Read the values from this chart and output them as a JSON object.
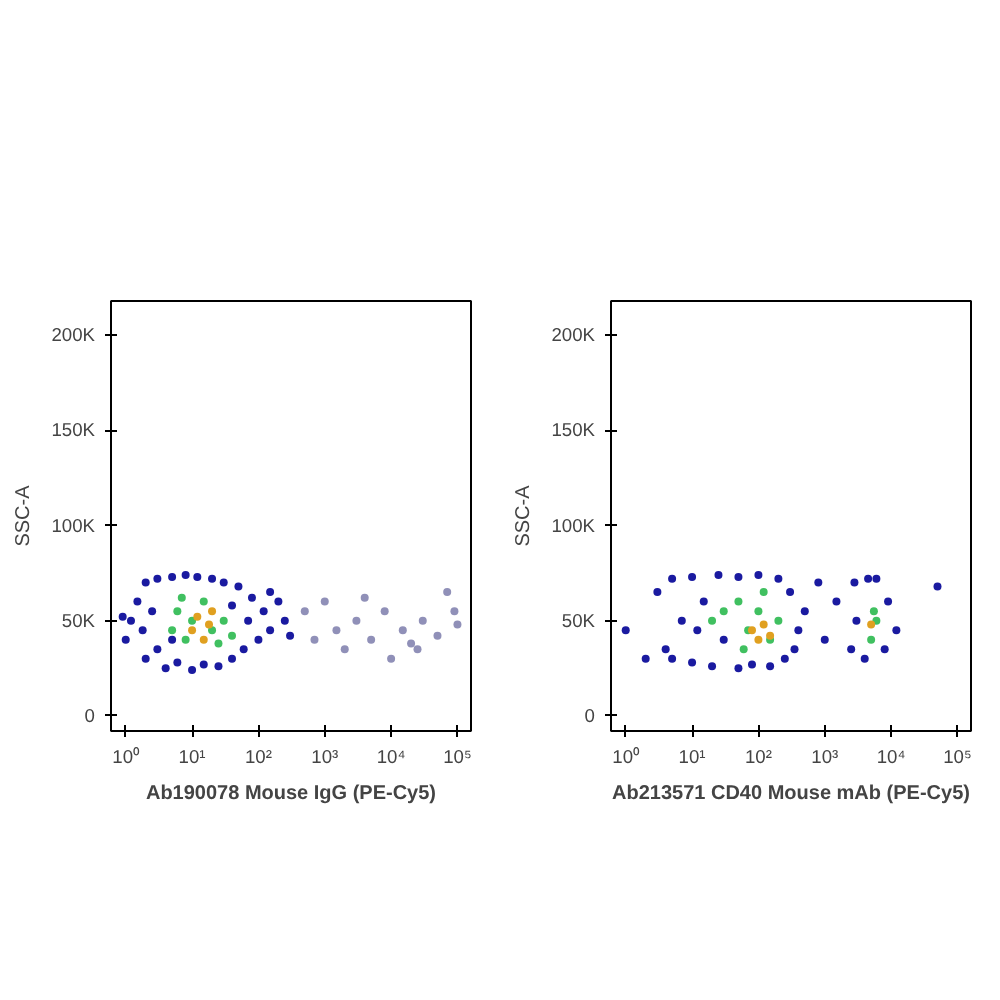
{
  "chart_data": [
    {
      "type": "scatter",
      "xlabel": "Ab190078 Mouse IgG (PE-Cy5)",
      "ylabel": "SSC-A",
      "log": "x",
      "grid": false,
      "marker": "circle",
      "xlim": [
        0.6,
        160000
      ],
      "ylim": [
        -8000,
        218000
      ],
      "xticks": [
        {
          "value": 1,
          "label": "10⁰"
        },
        {
          "value": 10,
          "label": "10¹"
        },
        {
          "value": 100,
          "label": "10²"
        },
        {
          "value": 1000,
          "label": "10³"
        },
        {
          "value": 10000,
          "label": "10⁴"
        },
        {
          "value": 100000,
          "label": "10⁵"
        }
      ],
      "yticks": [
        0,
        {
          "value": 50000,
          "label": "50K"
        },
        {
          "value": 100000,
          "label": "100K"
        },
        {
          "value": 150000,
          "label": "150K"
        },
        {
          "value": 200000,
          "label": "200K"
        }
      ],
      "series": [
        {
          "color": "#9090b8",
          "x": [
            500,
            700,
            1000,
            1500,
            2000,
            3000,
            5000,
            8000,
            10000,
            15000,
            20000,
            30000,
            50000,
            70000,
            90000,
            100000,
            4000,
            25000
          ],
          "values": [
            55000,
            40000,
            60000,
            45000,
            35000,
            50000,
            40000,
            55000,
            30000,
            45000,
            38000,
            50000,
            42000,
            65000,
            55000,
            48000,
            62000,
            35000
          ]
        },
        {
          "color": "#1a1aa0",
          "x": [
            1,
            1.5,
            2,
            2,
            3,
            3,
            4,
            5,
            6,
            8,
            10,
            12,
            15,
            20,
            25,
            30,
            40,
            50,
            60,
            80,
            100,
            120,
            150,
            200,
            250,
            300,
            1.2,
            1.8,
            2.5,
            70,
            40,
            5,
            150,
            0.9
          ],
          "values": [
            40000,
            60000,
            70000,
            30000,
            72000,
            35000,
            25000,
            73000,
            28000,
            74000,
            24000,
            73000,
            27000,
            72000,
            26000,
            70000,
            30000,
            68000,
            35000,
            62000,
            40000,
            55000,
            45000,
            60000,
            50000,
            42000,
            50000,
            45000,
            55000,
            50000,
            58000,
            40000,
            65000,
            52000
          ]
        },
        {
          "color": "#40c060",
          "x": [
            5,
            6,
            8,
            10,
            15,
            20,
            30,
            40,
            7,
            25
          ],
          "values": [
            45000,
            55000,
            40000,
            50000,
            60000,
            45000,
            50000,
            42000,
            62000,
            38000
          ]
        },
        {
          "color": "#e0a020",
          "x": [
            10,
            12,
            15,
            18,
            20
          ],
          "values": [
            45000,
            52000,
            40000,
            48000,
            55000
          ]
        }
      ]
    },
    {
      "type": "scatter",
      "xlabel": "Ab213571 CD40 Mouse mAb (PE-Cy5)",
      "ylabel": "SSC-A",
      "log": "x",
      "grid": false,
      "marker": "circle",
      "xlim": [
        0.6,
        160000
      ],
      "ylim": [
        -8000,
        218000
      ],
      "xticks": [
        {
          "value": 1,
          "label": "10⁰"
        },
        {
          "value": 10,
          "label": "10¹"
        },
        {
          "value": 100,
          "label": "10²"
        },
        {
          "value": 1000,
          "label": "10³"
        },
        {
          "value": 10000,
          "label": "10⁴"
        },
        {
          "value": 100000,
          "label": "10⁵"
        }
      ],
      "yticks": [
        0,
        {
          "value": 50000,
          "label": "50K"
        },
        {
          "value": 100000,
          "label": "100K"
        },
        {
          "value": 150000,
          "label": "150K"
        },
        {
          "value": 200000,
          "label": "200K"
        }
      ],
      "series": [
        {
          "color": "#1a1aa0",
          "x": [
            1,
            3,
            4,
            5,
            5,
            7,
            10,
            10,
            15,
            20,
            25,
            30,
            50,
            50,
            80,
            100,
            150,
            200,
            250,
            300,
            400,
            500,
            800,
            1000,
            1500,
            2500,
            2800,
            3000,
            4000,
            4500,
            6000,
            8000,
            9000,
            12000,
            50000,
            2,
            12,
            350
          ],
          "values": [
            45000,
            65000,
            35000,
            72000,
            30000,
            50000,
            73000,
            28000,
            60000,
            26000,
            74000,
            40000,
            73000,
            25000,
            27000,
            74000,
            26000,
            72000,
            30000,
            65000,
            45000,
            55000,
            70000,
            40000,
            60000,
            35000,
            70000,
            50000,
            30000,
            72000,
            72000,
            35000,
            60000,
            45000,
            68000,
            30000,
            45000,
            35000
          ]
        },
        {
          "color": "#40c060",
          "x": [
            20,
            30,
            50,
            60,
            70,
            100,
            150,
            200,
            120,
            5000,
            5500,
            6000
          ],
          "values": [
            50000,
            55000,
            60000,
            35000,
            45000,
            55000,
            40000,
            50000,
            65000,
            40000,
            55000,
            50000
          ]
        },
        {
          "color": "#e0a020",
          "x": [
            80,
            100,
            120,
            150,
            5000
          ],
          "values": [
            45000,
            40000,
            48000,
            42000,
            48000
          ]
        }
      ]
    }
  ]
}
